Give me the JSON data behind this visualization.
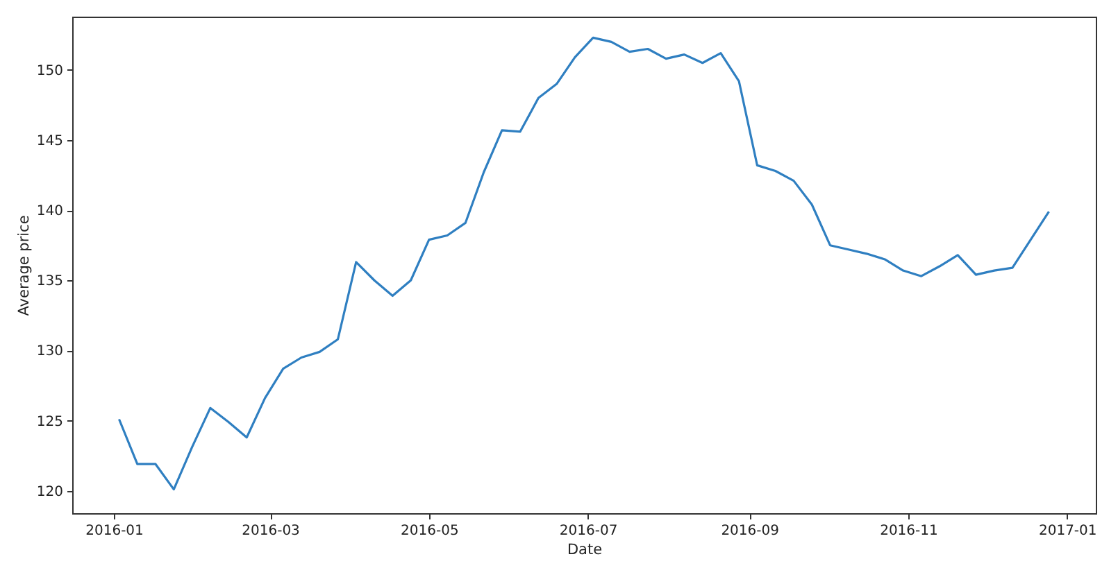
{
  "chart_data": {
    "type": "line",
    "xlabel": "Date",
    "ylabel": "Average price",
    "x": [
      "2016-01-03",
      "2016-01-10",
      "2016-01-17",
      "2016-01-24",
      "2016-01-31",
      "2016-02-07",
      "2016-02-14",
      "2016-02-21",
      "2016-02-28",
      "2016-03-06",
      "2016-03-13",
      "2016-03-20",
      "2016-03-27",
      "2016-04-03",
      "2016-04-10",
      "2016-04-17",
      "2016-04-24",
      "2016-05-01",
      "2016-05-08",
      "2016-05-15",
      "2016-05-22",
      "2016-05-29",
      "2016-06-05",
      "2016-06-12",
      "2016-06-19",
      "2016-06-26",
      "2016-07-03",
      "2016-07-10",
      "2016-07-17",
      "2016-07-24",
      "2016-07-31",
      "2016-08-07",
      "2016-08-14",
      "2016-08-21",
      "2016-08-28",
      "2016-09-04",
      "2016-09-11",
      "2016-09-18",
      "2016-09-25",
      "2016-10-02",
      "2016-10-09",
      "2016-10-16",
      "2016-10-23",
      "2016-10-30",
      "2016-11-06",
      "2016-11-13",
      "2016-11-20",
      "2016-11-27",
      "2016-12-04",
      "2016-12-11",
      "2016-12-25"
    ],
    "series": [
      {
        "color": "#2f7fc1",
        "values": [
          125.1,
          121.9,
          121.9,
          120.1,
          123.1,
          125.9,
          124.9,
          123.8,
          126.6,
          128.7,
          129.5,
          129.9,
          130.8,
          136.3,
          135.0,
          133.9,
          135.0,
          137.9,
          138.2,
          139.1,
          142.7,
          145.7,
          145.6,
          148.0,
          149.0,
          150.9,
          152.3,
          152.0,
          151.3,
          151.5,
          150.8,
          151.1,
          150.5,
          151.2,
          149.2,
          143.2,
          142.8,
          142.1,
          140.4,
          137.5,
          137.2,
          136.9,
          136.5,
          135.7,
          135.3,
          136.0,
          136.8,
          135.4,
          135.7,
          135.9,
          139.9
        ]
      }
    ],
    "xlim": [
      "2015-12-16",
      "2017-01-12"
    ],
    "xticks": [
      {
        "value": "2016-01-01",
        "label": "2016-01"
      },
      {
        "value": "2016-03-01",
        "label": "2016-03"
      },
      {
        "value": "2016-05-01",
        "label": "2016-05"
      },
      {
        "value": "2016-07-01",
        "label": "2016-07"
      },
      {
        "value": "2016-09-01",
        "label": "2016-09"
      },
      {
        "value": "2016-11-01",
        "label": "2016-11"
      },
      {
        "value": "2017-01-01",
        "label": "2017-01"
      }
    ],
    "ylim": [
      118.4,
      153.8
    ],
    "yticks": [
      120,
      125,
      130,
      135,
      140,
      145,
      150
    ],
    "grid": false
  }
}
